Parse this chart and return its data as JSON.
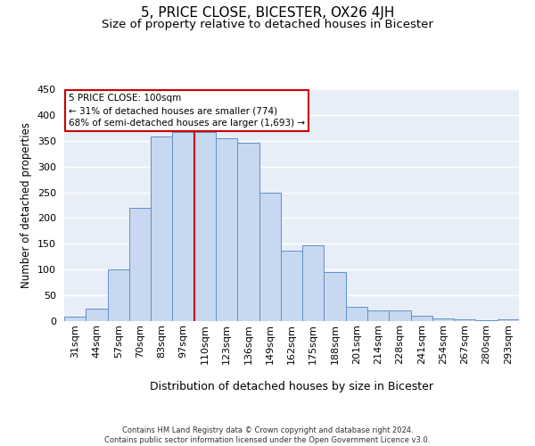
{
  "title": "5, PRICE CLOSE, BICESTER, OX26 4JH",
  "subtitle": "Size of property relative to detached houses in Bicester",
  "xlabel": "Distribution of detached houses by size in Bicester",
  "ylabel": "Number of detached properties",
  "categories": [
    "31sqm",
    "44sqm",
    "57sqm",
    "70sqm",
    "83sqm",
    "97sqm",
    "110sqm",
    "123sqm",
    "136sqm",
    "149sqm",
    "162sqm",
    "175sqm",
    "188sqm",
    "201sqm",
    "214sqm",
    "228sqm",
    "241sqm",
    "254sqm",
    "267sqm",
    "280sqm",
    "293sqm"
  ],
  "values": [
    8,
    25,
    100,
    220,
    358,
    367,
    367,
    355,
    347,
    250,
    137,
    147,
    95,
    28,
    20,
    20,
    11,
    5,
    3,
    2,
    3
  ],
  "bar_color": "#c8d8f0",
  "bar_edge_color": "#6090c8",
  "vline_x": 5.5,
  "vline_color": "#cc0000",
  "annotation_text": "5 PRICE CLOSE: 100sqm\n← 31% of detached houses are smaller (774)\n68% of semi-detached houses are larger (1,693) →",
  "annotation_box_color": "#ffffff",
  "annotation_box_edge_color": "#cc0000",
  "ylim": [
    0,
    450
  ],
  "yticks": [
    0,
    50,
    100,
    150,
    200,
    250,
    300,
    350,
    400,
    450
  ],
  "plot_bg_color": "#e8eef8",
  "grid_color": "#ffffff",
  "footer_line1": "Contains HM Land Registry data © Crown copyright and database right 2024.",
  "footer_line2": "Contains public sector information licensed under the Open Government Licence v3.0.",
  "title_fontsize": 11,
  "subtitle_fontsize": 9.5,
  "xlabel_fontsize": 9,
  "ylabel_fontsize": 8.5,
  "tick_fontsize": 8
}
